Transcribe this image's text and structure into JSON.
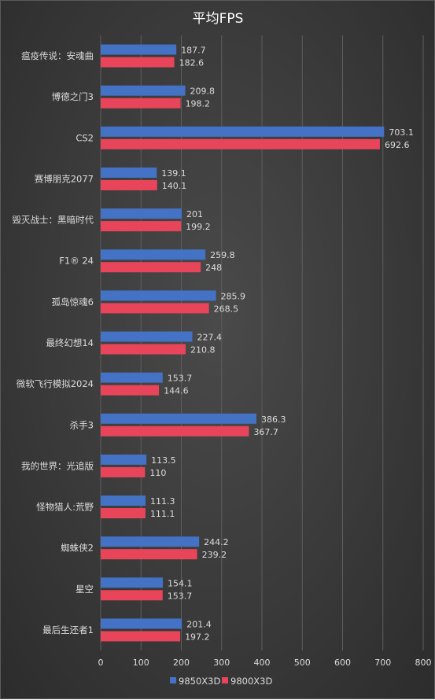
{
  "chart_data": {
    "type": "bar",
    "orientation": "horizontal",
    "title": "平均FPS",
    "categories": [
      "瘟疫传说：安魂曲",
      "博德之门3",
      "CS2",
      "赛博朋克2077",
      "毁灭战士：黑暗时代",
      "F1® 24",
      "孤岛惊魂6",
      "最终幻想14",
      "微软飞行模拟2024",
      "杀手3",
      "我的世界：光追版",
      "怪物猎人:荒野",
      "蜘蛛侠2",
      "星空",
      "最后生还者1"
    ],
    "series": [
      {
        "name": "9850X3D",
        "color": "#4472c4",
        "values": [
          187.7,
          209.8,
          703.1,
          139.1,
          201,
          259.8,
          285.9,
          227.4,
          153.7,
          386.3,
          113.5,
          111.3,
          244.2,
          154.1,
          201.4
        ]
      },
      {
        "name": "9800X3D",
        "color": "#e8455a",
        "values": [
          182.6,
          198.2,
          692.6,
          140.1,
          199.2,
          248,
          268.5,
          210.8,
          144.6,
          367.7,
          110,
          111.1,
          239.2,
          153.7,
          197.2
        ]
      }
    ],
    "xlim": [
      0,
      800
    ],
    "xticks": [
      0,
      100,
      200,
      300,
      400,
      500,
      600,
      700,
      800
    ],
    "grid": true,
    "legend_position": "bottom"
  }
}
